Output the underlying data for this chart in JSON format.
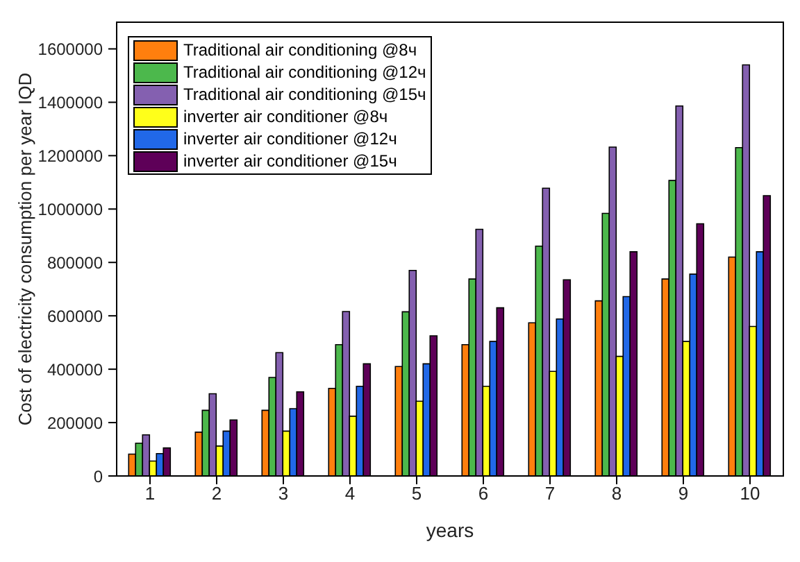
{
  "chart_data": {
    "type": "bar",
    "xlabel": "years",
    "ylabel": "Cost of electricity consumption per year   IQD",
    "categories": [
      "1",
      "2",
      "3",
      "4",
      "5",
      "6",
      "7",
      "8",
      "9",
      "10"
    ],
    "series": [
      {
        "name": "Traditional air conditioning @8ч",
        "color": "#ff7f0e",
        "values": [
          82000,
          164000,
          246000,
          328000,
          410000,
          492000,
          574000,
          656000,
          738000,
          820000
        ]
      },
      {
        "name": "Traditional air conditioning @12ч",
        "color": "#4cb84c",
        "values": [
          123000,
          246000,
          369000,
          492000,
          615000,
          738000,
          861000,
          984000,
          1107000,
          1230000
        ]
      },
      {
        "name": "Traditional air conditioning @15ч",
        "color": "#8460b0",
        "values": [
          154000,
          308000,
          462000,
          616000,
          770000,
          924000,
          1078000,
          1232000,
          1386000,
          1540000
        ]
      },
      {
        "name": "inverter air conditioner @8ч",
        "color": "#ffff1a",
        "values": [
          56000,
          112000,
          168000,
          224000,
          280000,
          336000,
          392000,
          448000,
          504000,
          560000
        ]
      },
      {
        "name": "inverter air conditioner @12ч",
        "color": "#2168e8",
        "values": [
          84000,
          168000,
          252000,
          336000,
          420000,
          504000,
          588000,
          672000,
          756000,
          840000
        ]
      },
      {
        "name": "inverter air conditioner @15ч",
        "color": "#5e0058",
        "values": [
          105000,
          210000,
          315000,
          420000,
          525000,
          630000,
          735000,
          840000,
          945000,
          1050000
        ]
      }
    ],
    "ylim": [
      0,
      1700000
    ],
    "yticks": [
      0,
      200000,
      400000,
      600000,
      800000,
      1000000,
      1200000,
      1400000,
      1600000
    ],
    "legend": "top left",
    "grid": false
  }
}
